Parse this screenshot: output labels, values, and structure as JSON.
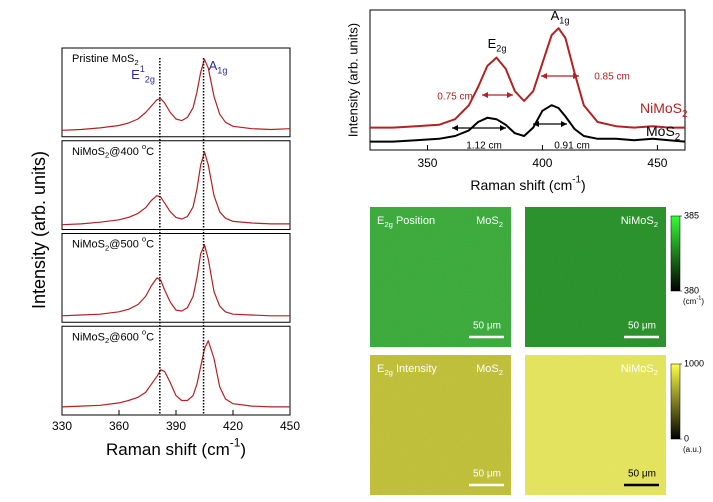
{
  "chart_data": [
    {
      "type": "line",
      "x": [
        330,
        340,
        350,
        360,
        365,
        370,
        374,
        377,
        380,
        382,
        384,
        387,
        390,
        393,
        396,
        399,
        401,
        403,
        405,
        407,
        410,
        413,
        416,
        420,
        430,
        440,
        450
      ],
      "xlim": [
        330,
        450
      ],
      "xticks": [
        330,
        360,
        390,
        420,
        450
      ],
      "ylim": [
        0,
        1.1
      ],
      "xlabel": [
        "Raman shift (cm",
        {
          "sup": "-1"
        },
        ")"
      ],
      "ylabel": "Intensity (arb. units)",
      "color": "#b22222",
      "vlines": [
        381.5,
        404.5
      ],
      "panels": [
        {
          "label": [
            "Pristine MoS",
            {
              "sub": "2"
            }
          ],
          "values": [
            0.08,
            0.09,
            0.11,
            0.14,
            0.17,
            0.22,
            0.3,
            0.38,
            0.46,
            0.47,
            0.42,
            0.3,
            0.22,
            0.2,
            0.24,
            0.36,
            0.55,
            0.8,
            0.96,
            0.85,
            0.5,
            0.28,
            0.18,
            0.13,
            0.1,
            0.09,
            0.1
          ]
        },
        {
          "label": [
            "NiMoS",
            {
              "sub": "2"
            },
            "@400 ",
            {
              "sup": "o"
            },
            "C"
          ],
          "values": [
            0.06,
            0.07,
            0.09,
            0.12,
            0.15,
            0.2,
            0.27,
            0.36,
            0.42,
            0.4,
            0.33,
            0.22,
            0.15,
            0.13,
            0.16,
            0.28,
            0.5,
            0.8,
            0.96,
            0.8,
            0.42,
            0.22,
            0.14,
            0.1,
            0.08,
            0.07,
            0.07
          ]
        },
        {
          "label": [
            "NiMoS",
            {
              "sub": "2"
            },
            "@500 ",
            {
              "sup": "o"
            },
            "C"
          ],
          "values": [
            0.08,
            0.09,
            0.1,
            0.13,
            0.16,
            0.22,
            0.32,
            0.45,
            0.55,
            0.52,
            0.4,
            0.25,
            0.15,
            0.14,
            0.18,
            0.32,
            0.55,
            0.85,
            0.96,
            0.78,
            0.38,
            0.2,
            0.13,
            0.1,
            0.09,
            0.08,
            0.08
          ]
        },
        {
          "label": [
            "NiMoS",
            {
              "sub": "2"
            },
            "@600 ",
            {
              "sup": "o"
            },
            "C"
          ],
          "values": [
            0.1,
            0.11,
            0.12,
            0.15,
            0.18,
            0.22,
            0.28,
            0.38,
            0.48,
            0.56,
            0.54,
            0.4,
            0.24,
            0.18,
            0.18,
            0.24,
            0.38,
            0.6,
            0.82,
            0.92,
            0.7,
            0.35,
            0.2,
            0.14,
            0.11,
            0.1,
            0.1
          ]
        }
      ],
      "annotations": [
        {
          "text": [
            "E",
            {
              "sup": "1"
            },
            {
              "sub": "2g"
            }
          ],
          "color": "#2a2aa0"
        },
        {
          "text": [
            "A",
            {
              "sub": "1g"
            }
          ],
          "color": "#2a2aa0"
        }
      ]
    },
    {
      "type": "line",
      "x": [
        325,
        335,
        345,
        355,
        362,
        368,
        372,
        376,
        380,
        384,
        388,
        392,
        396,
        400,
        404,
        407,
        410,
        414,
        418,
        424,
        432,
        440,
        448,
        455,
        462
      ],
      "xlim": [
        325,
        462
      ],
      "xticks": [
        350,
        400,
        450
      ],
      "ylim": [
        0,
        1
      ],
      "xlabel": [
        "Raman shift (cm",
        {
          "sup": "-1"
        },
        ")"
      ],
      "ylabel": "Intensity (arb. units)",
      "series": [
        {
          "name": [
            "NiMoS",
            {
              "sub": "2"
            }
          ],
          "color": "#b22222",
          "values": [
            0.16,
            0.16,
            0.17,
            0.18,
            0.22,
            0.32,
            0.45,
            0.6,
            0.66,
            0.58,
            0.42,
            0.35,
            0.42,
            0.62,
            0.82,
            0.87,
            0.8,
            0.55,
            0.32,
            0.2,
            0.17,
            0.16,
            0.17,
            0.16,
            0.16
          ]
        },
        {
          "name": [
            "MoS",
            {
              "sub": "2"
            }
          ],
          "color": "#000000",
          "values": [
            0.06,
            0.06,
            0.07,
            0.08,
            0.1,
            0.14,
            0.2,
            0.23,
            0.22,
            0.18,
            0.12,
            0.1,
            0.16,
            0.28,
            0.32,
            0.3,
            0.24,
            0.15,
            0.1,
            0.08,
            0.08,
            0.07,
            0.08,
            0.07,
            0.06
          ]
        }
      ],
      "annotations": [
        {
          "text": [
            "E",
            {
              "sub": "2g"
            }
          ],
          "color": "#000000"
        },
        {
          "text": [
            "A",
            {
              "sub": "1g"
            }
          ],
          "color": "#000000"
        },
        {
          "text": "0.75 cm",
          "color": "#b22222"
        },
        {
          "text": "0.85 cm",
          "color": "#b22222"
        },
        {
          "text": "1.12 cm",
          "color": "#000000"
        },
        {
          "text": "0.91 cm",
          "color": "#000000"
        }
      ]
    },
    {
      "type": "image",
      "rows": [
        {
          "title": [
            "E",
            {
              "sub": "2g"
            },
            " Position"
          ],
          "panels": [
            {
              "sample": [
                "MoS",
                {
                  "sub": "2"
                }
              ],
              "color": "#3aa63a",
              "scalebar": "50 μm",
              "scalebar_color": "#ffffff"
            },
            {
              "sample": [
                "NiMoS",
                {
                  "sub": "2"
                }
              ],
              "color": "#2a8c2a",
              "scalebar": "50 μm",
              "scalebar_color": "#ffffff"
            }
          ],
          "colorbar": {
            "lim": [
              380,
              385
            ],
            "ticks": [
              385,
              380
            ],
            "unit": [
              "(cm",
              {
                "sup": "-1"
              },
              ")"
            ],
            "colors": [
              "#33ff33",
              "#000000"
            ]
          }
        },
        {
          "title": [
            "E",
            {
              "sub": "2g"
            },
            " Intensity"
          ],
          "panels": [
            {
              "sample": [
                "MoS",
                {
                  "sub": "2"
                }
              ],
              "color": "#bcbc38",
              "scalebar": "50 μm",
              "scalebar_color": "#ffffff"
            },
            {
              "sample": [
                "NiMoS",
                {
                  "sub": "2"
                }
              ],
              "color": "#e2e25a",
              "scalebar": "50 μm",
              "scalebar_color": "#000000"
            }
          ],
          "colorbar": {
            "lim": [
              0,
              1000
            ],
            "ticks": [
              1000,
              0
            ],
            "unit": "(a.u.)",
            "colors": [
              "#ffff40",
              "#000000"
            ]
          }
        }
      ]
    }
  ]
}
